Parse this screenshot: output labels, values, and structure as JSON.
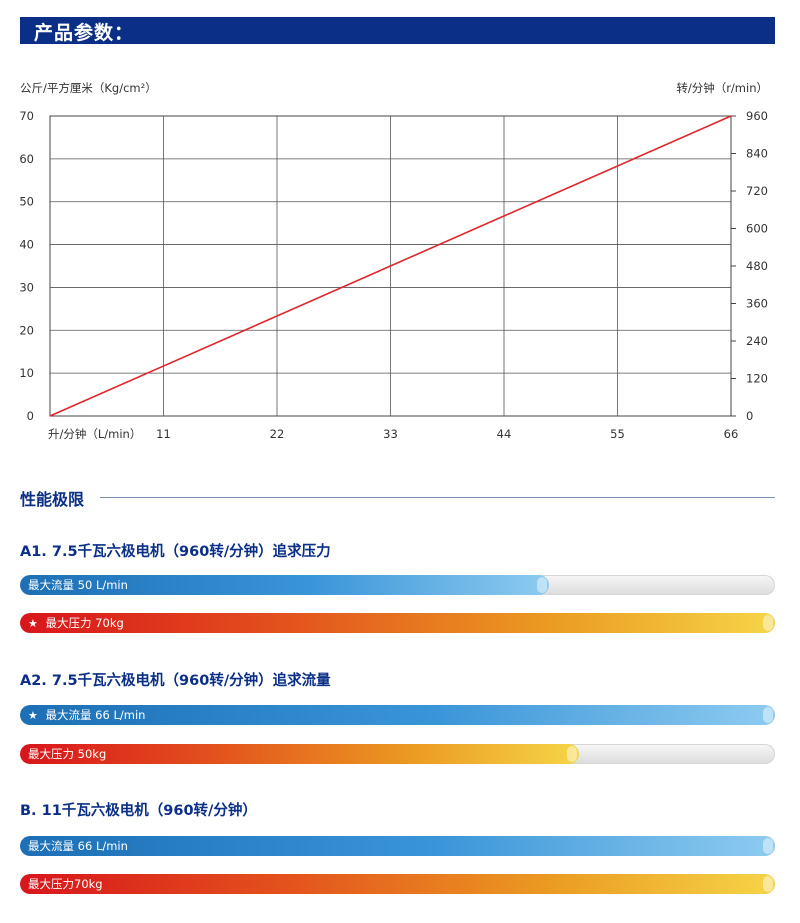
{
  "header": {
    "title": "产品参数："
  },
  "chart_data": {
    "type": "line",
    "left_axis_label": "公斤/平方厘米（Kg/cm²）",
    "right_axis_label": "转/分钟（r/min）",
    "x_axis_label": "升/分钟（L/min）",
    "x_ticks": [
      11,
      22,
      33,
      44,
      55,
      66
    ],
    "y_left_ticks": [
      0,
      10,
      20,
      30,
      40,
      50,
      60,
      70
    ],
    "y_right_ticks": [
      0,
      120,
      240,
      360,
      480,
      600,
      720,
      840,
      960
    ],
    "xlim": [
      0,
      66
    ],
    "ylim_left": [
      0,
      70
    ],
    "ylim_right": [
      0,
      960
    ],
    "grid": true,
    "series": [
      {
        "x": [
          0,
          66
        ],
        "y": [
          0,
          70
        ],
        "color": "#e0262b"
      }
    ]
  },
  "limits": {
    "section_title": "性能极限",
    "groups": [
      {
        "title": "A1. 7.5千瓦六极电机（960转/分钟）追求压力",
        "bars": [
          {
            "label": "最大流量 50 L/min",
            "star": false,
            "color": "blue",
            "fill": 0.7
          },
          {
            "label": "最大压力 70kg",
            "star": true,
            "color": "red",
            "fill": 1.0
          }
        ]
      },
      {
        "title": "A2. 7.5千瓦六极电机（960转/分钟）追求流量",
        "bars": [
          {
            "label": "最大流量 66 L/min",
            "star": true,
            "color": "blue",
            "fill": 1.0
          },
          {
            "label": "最大压力 50kg",
            "star": false,
            "color": "red",
            "fill": 0.74
          }
        ]
      },
      {
        "title": "B. 11千瓦六极电机（960转/分钟）",
        "bars": [
          {
            "label": "最大流量 66 L/min",
            "star": false,
            "color": "blue",
            "fill": 1.0
          },
          {
            "label": "最大压力70kg",
            "star": false,
            "color": "red",
            "fill": 1.0
          }
        ]
      }
    ]
  },
  "icons": {
    "star": "★"
  }
}
